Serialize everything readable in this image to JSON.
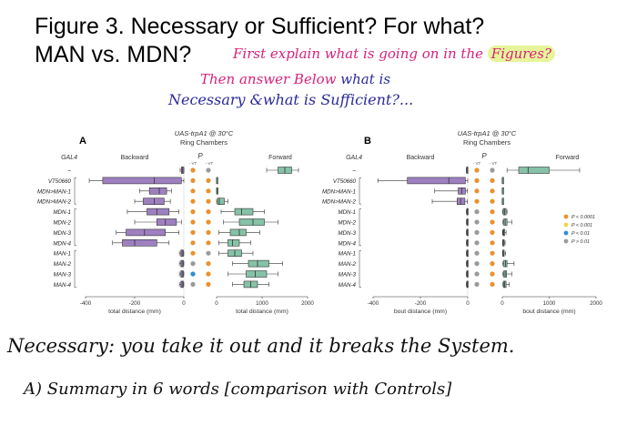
{
  "slide": {
    "title_line1": "Figure 3. Necessary or Sufficient? For what?",
    "title_line2": "MAN vs. MDN?"
  },
  "annotations": {
    "pink_a": "First explain what is going on in the",
    "pink_b": "Figures?",
    "blue_1a": "Then answer Below",
    "blue_1b": "what is",
    "blue_2": "Necessary &what is Sufficient?...",
    "black_1": "Necessary: you take it out and it breaks the System.",
    "black_2": "A) Summary in 6 words [comparison with Controls]"
  },
  "figure_common": {
    "header": "UAS-trpA1 @ 30°C",
    "subheader": "Ring Chambers",
    "gal4_label": "GAL4",
    "backward_label": "Backward",
    "forward_label": "Forward",
    "p_label": "P",
    "vt_left": "- VT",
    "vt_right": "- VT",
    "rows": [
      "–",
      "VT50660",
      "MDN>MAN-1",
      "MDN>MAN-2",
      "MDN-1",
      "MDN-2",
      "MDN-3",
      "MDN-4",
      "MAN-1",
      "MAN-2",
      "MAN-3",
      "MAN-4"
    ]
  },
  "legend": {
    "items": [
      {
        "label": "P < 0.0001",
        "color": "#e8922e"
      },
      {
        "label": "P < 0.001",
        "color": "#f1d64b"
      },
      {
        "label": "P < 0.01",
        "color": "#2d8fcf"
      },
      {
        "label": "P > 0.01",
        "color": "#9a9a9a"
      }
    ]
  },
  "chart_data": [
    {
      "type": "boxplot",
      "panel": "A",
      "title": "UAS-trpA1 @ 30°C",
      "subtitle": "Ring Chambers",
      "left_axis": {
        "label": "total distance (mm)",
        "ticks": [
          -400,
          -200,
          0
        ],
        "range": [
          -400,
          0
        ]
      },
      "right_axis": {
        "label": "total distance (mm)",
        "ticks": [
          0,
          1000,
          2000
        ],
        "range": [
          0,
          2000
        ]
      },
      "backward": [
        {
          "row": 0,
          "q1": -10,
          "med": -5,
          "q3": 0,
          "wlo": -15,
          "whi": 0
        },
        {
          "row": 1,
          "q1": -330,
          "med": -120,
          "q3": -10,
          "wlo": -385,
          "whi": 0
        },
        {
          "row": 2,
          "q1": -140,
          "med": -100,
          "q3": -70,
          "wlo": -180,
          "whi": -50
        },
        {
          "row": 3,
          "q1": -165,
          "med": -120,
          "q3": -80,
          "wlo": -200,
          "whi": -55
        },
        {
          "row": 4,
          "q1": -150,
          "med": -110,
          "q3": -60,
          "wlo": -230,
          "whi": -20
        },
        {
          "row": 5,
          "q1": -110,
          "med": -75,
          "q3": -30,
          "wlo": -200,
          "whi": -10
        },
        {
          "row": 6,
          "q1": -235,
          "med": -160,
          "q3": -75,
          "wlo": -275,
          "whi": -20
        },
        {
          "row": 7,
          "q1": -250,
          "med": -200,
          "q3": -110,
          "wlo": -290,
          "whi": -60
        },
        {
          "row": 8,
          "q1": -12,
          "med": -7,
          "q3": -2,
          "wlo": -18,
          "whi": 0
        },
        {
          "row": 9,
          "q1": -12,
          "med": -7,
          "q3": -2,
          "wlo": -18,
          "whi": 0
        },
        {
          "row": 10,
          "q1": -12,
          "med": -7,
          "q3": -2,
          "wlo": -18,
          "whi": 0
        },
        {
          "row": 11,
          "q1": -12,
          "med": -7,
          "q3": -2,
          "wlo": -18,
          "whi": 0
        }
      ],
      "p_dots": [
        [
          "#e8922e",
          "#9a9a9a"
        ],
        [
          "#e8922e",
          "#e8922e"
        ],
        [
          "#e8922e",
          "#e8922e"
        ],
        [
          "#e8922e",
          "#e8922e"
        ],
        [
          "#e8922e",
          "#e8922e"
        ],
        [
          "#e8922e",
          "#e8922e"
        ],
        [
          "#e8922e",
          "#e8922e"
        ],
        [
          "#e8922e",
          "#e8922e"
        ],
        [
          "#e8922e",
          "#9a9a9a"
        ],
        [
          "#9a9a9a",
          "#e8922e"
        ],
        [
          "#2d8fcf",
          "#e8922e"
        ],
        [
          "#9a9a9a",
          "#e8922e"
        ]
      ],
      "forward": [
        {
          "row": 0,
          "q1": 1350,
          "med": 1500,
          "q3": 1650,
          "wlo": 1100,
          "whi": 1800
        },
        {
          "row": 1,
          "q1": 0,
          "med": 0,
          "q3": 0,
          "wlo": 0,
          "whi": 0
        },
        {
          "row": 2,
          "q1": 0,
          "med": 5,
          "q3": 15,
          "wlo": 0,
          "whi": 30
        },
        {
          "row": 3,
          "q1": 20,
          "med": 60,
          "q3": 170,
          "wlo": 0,
          "whi": 250
        },
        {
          "row": 4,
          "q1": 400,
          "med": 550,
          "q3": 800,
          "wlo": 100,
          "whi": 1050
        },
        {
          "row": 5,
          "q1": 500,
          "med": 800,
          "q3": 1050,
          "wlo": 150,
          "whi": 1350
        },
        {
          "row": 6,
          "q1": 300,
          "med": 500,
          "q3": 650,
          "wlo": 50,
          "whi": 950
        },
        {
          "row": 7,
          "q1": 250,
          "med": 350,
          "q3": 500,
          "wlo": 50,
          "whi": 750
        },
        {
          "row": 8,
          "q1": 250,
          "med": 400,
          "q3": 550,
          "wlo": 50,
          "whi": 800
        },
        {
          "row": 9,
          "q1": 700,
          "med": 900,
          "q3": 1150,
          "wlo": 350,
          "whi": 1450
        },
        {
          "row": 10,
          "q1": 650,
          "med": 850,
          "q3": 1100,
          "wlo": 250,
          "whi": 1350
        },
        {
          "row": 11,
          "q1": 600,
          "med": 750,
          "q3": 900,
          "wlo": 350,
          "whi": 1150
        }
      ]
    },
    {
      "type": "boxplot",
      "panel": "B",
      "title": "UAS-trpA1 @ 30°C",
      "subtitle": "Ring Chambers",
      "left_axis": {
        "label": "bout distance (mm)",
        "ticks": [
          -400,
          -200,
          0
        ],
        "range": [
          -400,
          0
        ]
      },
      "right_axis": {
        "label": "bout distance (mm)",
        "ticks": [
          0,
          1000,
          2000
        ],
        "range": [
          0,
          2000
        ]
      },
      "backward": [
        {
          "row": 0,
          "q1": -5,
          "med": -3,
          "q3": -1,
          "wlo": -6,
          "whi": 0
        },
        {
          "row": 1,
          "q1": -255,
          "med": -80,
          "q3": -10,
          "wlo": -380,
          "whi": 0
        },
        {
          "row": 2,
          "q1": -40,
          "med": -25,
          "q3": -10,
          "wlo": -140,
          "whi": -2
        },
        {
          "row": 3,
          "q1": -45,
          "med": -30,
          "q3": -12,
          "wlo": -150,
          "whi": -2
        },
        {
          "row": 4,
          "q1": -4,
          "med": -2,
          "q3": -1,
          "wlo": -6,
          "whi": 0
        },
        {
          "row": 5,
          "q1": -4,
          "med": -2,
          "q3": -1,
          "wlo": -6,
          "whi": 0
        },
        {
          "row": 6,
          "q1": -4,
          "med": -2,
          "q3": -1,
          "wlo": -6,
          "whi": 0
        },
        {
          "row": 7,
          "q1": -4,
          "med": -2,
          "q3": -1,
          "wlo": -6,
          "whi": 0
        },
        {
          "row": 8,
          "q1": -4,
          "med": -2,
          "q3": -1,
          "wlo": -6,
          "whi": 0
        },
        {
          "row": 9,
          "q1": -4,
          "med": -2,
          "q3": -1,
          "wlo": -6,
          "whi": 0
        },
        {
          "row": 10,
          "q1": -4,
          "med": -2,
          "q3": -1,
          "wlo": -6,
          "whi": 0
        },
        {
          "row": 11,
          "q1": -4,
          "med": -2,
          "q3": -1,
          "wlo": -6,
          "whi": 0
        }
      ],
      "p_dots": [
        [
          "#e8922e",
          "#9a9a9a"
        ],
        [
          "#e8922e",
          "#e8922e"
        ],
        [
          "#e8922e",
          "#e8922e"
        ],
        [
          "#e8922e",
          "#e8922e"
        ],
        [
          "#9a9a9a",
          "#e8922e"
        ],
        [
          "#9a9a9a",
          "#e8922e"
        ],
        [
          "#9a9a9a",
          "#e8922e"
        ],
        [
          "#9a9a9a",
          "#e8922e"
        ],
        [
          "#9a9a9a",
          "#e8922e"
        ],
        [
          "#9a9a9a",
          "#e8922e"
        ],
        [
          "#9a9a9a",
          "#e8922e"
        ],
        [
          "#9a9a9a",
          "#e8922e"
        ]
      ],
      "forward": [
        {
          "row": 0,
          "q1": 350,
          "med": 550,
          "q3": 1000,
          "wlo": 100,
          "whi": 1650
        },
        {
          "row": 1,
          "q1": 0,
          "med": 0,
          "q3": 0,
          "wlo": 0,
          "whi": 0
        },
        {
          "row": 2,
          "q1": 0,
          "med": 0,
          "q3": 0,
          "wlo": 0,
          "whi": 0
        },
        {
          "row": 3,
          "q1": 0,
          "med": 0,
          "q3": 0,
          "wlo": 0,
          "whi": 0
        },
        {
          "row": 4,
          "q1": 20,
          "med": 50,
          "q3": 80,
          "wlo": 5,
          "whi": 100
        },
        {
          "row": 5,
          "q1": 30,
          "med": 60,
          "q3": 100,
          "wlo": 10,
          "whi": 200
        },
        {
          "row": 6,
          "q1": 15,
          "med": 30,
          "q3": 50,
          "wlo": 5,
          "whi": 80
        },
        {
          "row": 7,
          "q1": 10,
          "med": 20,
          "q3": 40,
          "wlo": 5,
          "whi": 60
        },
        {
          "row": 8,
          "q1": 10,
          "med": 20,
          "q3": 40,
          "wlo": 5,
          "whi": 70
        },
        {
          "row": 9,
          "q1": 30,
          "med": 70,
          "q3": 100,
          "wlo": 10,
          "whi": 250
        },
        {
          "row": 10,
          "q1": 30,
          "med": 60,
          "q3": 90,
          "wlo": 10,
          "whi": 200
        },
        {
          "row": 11,
          "q1": 25,
          "med": 50,
          "q3": 80,
          "wlo": 10,
          "whi": 150
        }
      ]
    }
  ]
}
